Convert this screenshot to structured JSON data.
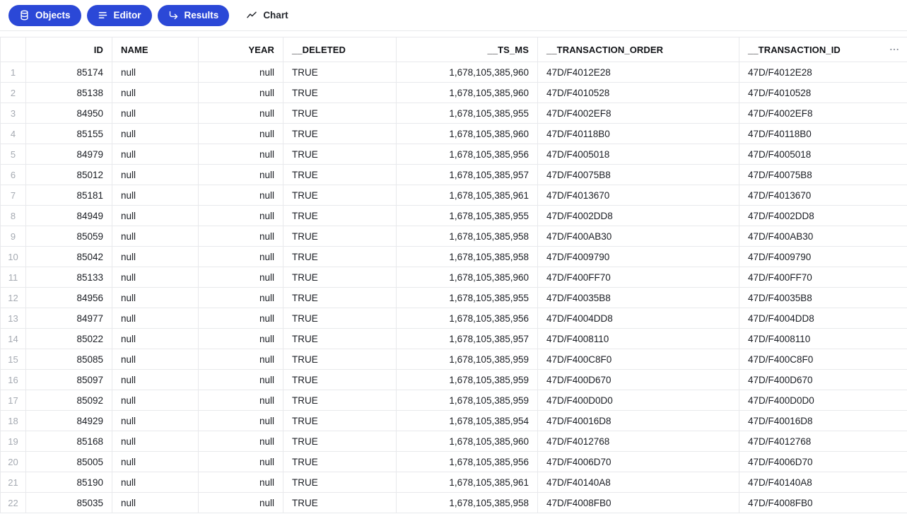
{
  "colors": {
    "accent": "#2b48d7",
    "border": "#e8e9ec",
    "text": "#1b1e24",
    "muted": "#a5aab2"
  },
  "toolbar": {
    "buttons": [
      {
        "label": "Objects",
        "icon": "database-icon"
      },
      {
        "label": "Editor",
        "icon": "lines-icon"
      },
      {
        "label": "Results",
        "icon": "corner-down-right-icon"
      }
    ],
    "chart": {
      "label": "Chart",
      "icon": "line-chart-icon"
    }
  },
  "table": {
    "columns": [
      {
        "key": "id",
        "label": "ID",
        "align": "right"
      },
      {
        "key": "name",
        "label": "NAME",
        "align": "left"
      },
      {
        "key": "year",
        "label": "YEAR",
        "align": "right"
      },
      {
        "key": "deleted",
        "label": "__DELETED",
        "align": "left"
      },
      {
        "key": "ts_ms",
        "label": "__TS_MS",
        "align": "right"
      },
      {
        "key": "transaction_order",
        "label": "__TRANSACTION_ORDER",
        "align": "left"
      },
      {
        "key": "transaction_id",
        "label": "__TRANSACTION_ID",
        "align": "left"
      }
    ],
    "rows": [
      {
        "num": 1,
        "cells": [
          "85174",
          "null",
          "null",
          "TRUE",
          "1,678,105,385,960",
          "47D/F4012E28",
          "47D/F4012E28"
        ]
      },
      {
        "num": 2,
        "cells": [
          "85138",
          "null",
          "null",
          "TRUE",
          "1,678,105,385,960",
          "47D/F4010528",
          "47D/F4010528"
        ]
      },
      {
        "num": 3,
        "cells": [
          "84950",
          "null",
          "null",
          "TRUE",
          "1,678,105,385,955",
          "47D/F4002EF8",
          "47D/F4002EF8"
        ]
      },
      {
        "num": 4,
        "cells": [
          "85155",
          "null",
          "null",
          "TRUE",
          "1,678,105,385,960",
          "47D/F40118B0",
          "47D/F40118B0"
        ]
      },
      {
        "num": 5,
        "cells": [
          "84979",
          "null",
          "null",
          "TRUE",
          "1,678,105,385,956",
          "47D/F4005018",
          "47D/F4005018"
        ]
      },
      {
        "num": 6,
        "cells": [
          "85012",
          "null",
          "null",
          "TRUE",
          "1,678,105,385,957",
          "47D/F40075B8",
          "47D/F40075B8"
        ]
      },
      {
        "num": 7,
        "cells": [
          "85181",
          "null",
          "null",
          "TRUE",
          "1,678,105,385,961",
          "47D/F4013670",
          "47D/F4013670"
        ]
      },
      {
        "num": 8,
        "cells": [
          "84949",
          "null",
          "null",
          "TRUE",
          "1,678,105,385,955",
          "47D/F4002DD8",
          "47D/F4002DD8"
        ]
      },
      {
        "num": 9,
        "cells": [
          "85059",
          "null",
          "null",
          "TRUE",
          "1,678,105,385,958",
          "47D/F400AB30",
          "47D/F400AB30"
        ]
      },
      {
        "num": 10,
        "cells": [
          "85042",
          "null",
          "null",
          "TRUE",
          "1,678,105,385,958",
          "47D/F4009790",
          "47D/F4009790"
        ]
      },
      {
        "num": 11,
        "cells": [
          "85133",
          "null",
          "null",
          "TRUE",
          "1,678,105,385,960",
          "47D/F400FF70",
          "47D/F400FF70"
        ]
      },
      {
        "num": 12,
        "cells": [
          "84956",
          "null",
          "null",
          "TRUE",
          "1,678,105,385,955",
          "47D/F40035B8",
          "47D/F40035B8"
        ]
      },
      {
        "num": 13,
        "cells": [
          "84977",
          "null",
          "null",
          "TRUE",
          "1,678,105,385,956",
          "47D/F4004DD8",
          "47D/F4004DD8"
        ]
      },
      {
        "num": 14,
        "cells": [
          "85022",
          "null",
          "null",
          "TRUE",
          "1,678,105,385,957",
          "47D/F4008110",
          "47D/F4008110"
        ]
      },
      {
        "num": 15,
        "cells": [
          "85085",
          "null",
          "null",
          "TRUE",
          "1,678,105,385,959",
          "47D/F400C8F0",
          "47D/F400C8F0"
        ]
      },
      {
        "num": 16,
        "cells": [
          "85097",
          "null",
          "null",
          "TRUE",
          "1,678,105,385,959",
          "47D/F400D670",
          "47D/F400D670"
        ]
      },
      {
        "num": 17,
        "cells": [
          "85092",
          "null",
          "null",
          "TRUE",
          "1,678,105,385,959",
          "47D/F400D0D0",
          "47D/F400D0D0"
        ]
      },
      {
        "num": 18,
        "cells": [
          "84929",
          "null",
          "null",
          "TRUE",
          "1,678,105,385,954",
          "47D/F40016D8",
          "47D/F40016D8"
        ]
      },
      {
        "num": 19,
        "cells": [
          "85168",
          "null",
          "null",
          "TRUE",
          "1,678,105,385,960",
          "47D/F4012768",
          "47D/F4012768"
        ]
      },
      {
        "num": 20,
        "cells": [
          "85005",
          "null",
          "null",
          "TRUE",
          "1,678,105,385,956",
          "47D/F4006D70",
          "47D/F4006D70"
        ]
      },
      {
        "num": 21,
        "cells": [
          "85190",
          "null",
          "null",
          "TRUE",
          "1,678,105,385,961",
          "47D/F40140A8",
          "47D/F40140A8"
        ]
      },
      {
        "num": 22,
        "cells": [
          "85035",
          "null",
          "null",
          "TRUE",
          "1,678,105,385,958",
          "47D/F4008FB0",
          "47D/F4008FB0"
        ]
      }
    ]
  }
}
